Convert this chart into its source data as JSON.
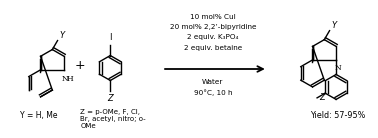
{
  "bg_color": "#ffffff",
  "reaction_conditions": [
    "10 mol% CuI",
    "20 mol% 2,2’-bipyridine",
    "2 equiv. K₃PO₄",
    "2 equiv. betaine"
  ],
  "reaction_conditions2": [
    "Water",
    "90°C, 10 h"
  ],
  "label_Y": "Y = H, Me",
  "label_Z": "Z = p-OMe, F, Cl,\nBr, acetyl, nitro; o-\nOMe",
  "yield_text": "Yield: 57-95%"
}
